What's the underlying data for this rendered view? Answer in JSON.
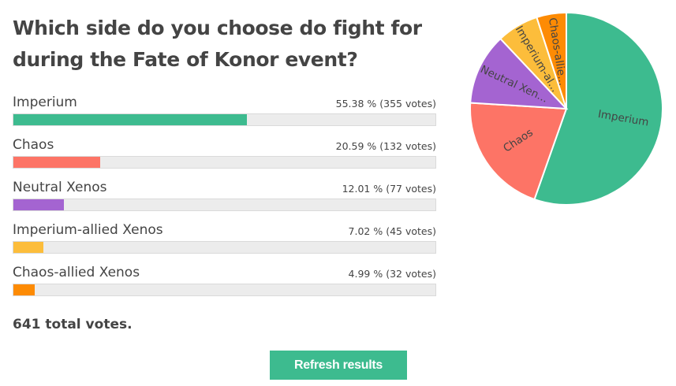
{
  "poll": {
    "question": "Which side do you choose do fight for during the Fate of Konor event?",
    "total_votes_label": "641 total votes.",
    "refresh_label": "Refresh results"
  },
  "chart_data": {
    "type": "pie",
    "categories": [
      "Imperium",
      "Chaos",
      "Neutral Xenos",
      "Imperium-allied Xenos",
      "Chaos-allied Xenos"
    ],
    "values": [
      55.38,
      20.59,
      12.01,
      7.02,
      4.99
    ],
    "votes": [
      355,
      132,
      77,
      45,
      32
    ],
    "stat_labels": [
      "55.38 % (355 votes)",
      "20.59 % (132 votes)",
      "12.01 % (77 votes)",
      "7.02 % (45 votes)",
      "4.99 % (32 votes)"
    ],
    "pie_labels": [
      "Imperium",
      "Chaos",
      "Neutral Xen...",
      "Imperium-al...",
      "Chaos-allie..."
    ],
    "colors": [
      "#3dbb8f",
      "#fd7466",
      "#a464d1",
      "#fcbd3b",
      "#fd8b04"
    ]
  }
}
